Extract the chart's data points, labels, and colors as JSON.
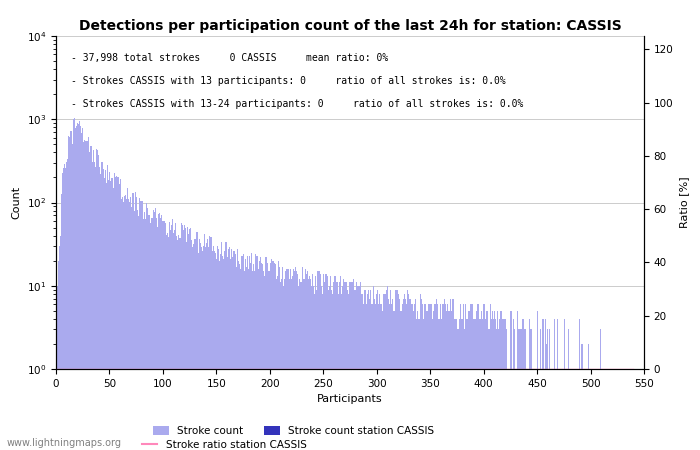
{
  "title": "Detections per participation count of the last 24h for station: CASSIS",
  "xlabel": "Participants",
  "ylabel_left": "Count",
  "ylabel_right": "Ratio [%]",
  "xlim": [
    0,
    550
  ],
  "ylim_log_min": 1,
  "ylim_log_max": 10000,
  "ylim_ratio": [
    0,
    125
  ],
  "annotation_lines": [
    "37,998 total strokes     0 CASSIS     mean ratio: 0%",
    "Strokes CASSIS with 13 participants: 0     ratio of all strokes is: 0.0%",
    "Strokes CASSIS with 13-24 participants: 0     ratio of all strokes is: 0.0%"
  ],
  "bar_color_light": "#aaaaee",
  "bar_color_dark": "#3333bb",
  "ratio_line_color": "#ff88bb",
  "background_color": "#ffffff",
  "grid_color": "#cccccc",
  "text_color": "#000000",
  "watermark": "www.lightningmaps.org",
  "legend_entries": [
    "Stroke count",
    "Stroke count station CASSIS",
    "Stroke ratio station CASSIS"
  ],
  "title_fontsize": 10,
  "axis_fontsize": 8,
  "annotation_fontsize": 7,
  "tick_label_fontsize": 7.5,
  "x_ticks": [
    0,
    50,
    100,
    150,
    200,
    250,
    300,
    350,
    400,
    450,
    500,
    550
  ],
  "ratio_yticks": [
    0,
    20,
    40,
    60,
    80,
    100,
    120
  ],
  "log_ytick_labels": [
    "10^0",
    "10^1",
    "10^2",
    "10^3",
    "10^4"
  ],
  "log_ytick_values": [
    1,
    10,
    100,
    1000,
    10000
  ]
}
